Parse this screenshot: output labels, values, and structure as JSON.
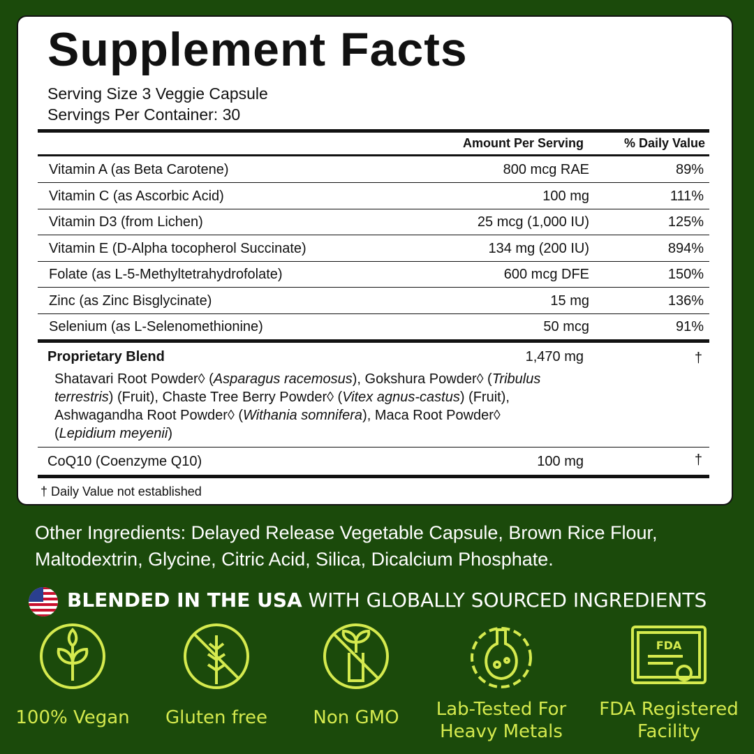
{
  "panel": {
    "title": "Supplement Facts",
    "serving_size": "Serving Size 3 Veggie Capsule",
    "servings_per_container": "Servings Per Container: 30",
    "columns": [
      "Amount Per Serving",
      "% Daily Value"
    ],
    "rows": [
      [
        "Vitamin A (as Beta Carotene)",
        "800 mcg RAE",
        "89%"
      ],
      [
        "Vitamin C (as Ascorbic Acid)",
        "100 mg",
        "111%"
      ],
      [
        "Vitamin D3 (from Lichen)",
        "25 mcg (1,000 IU)",
        "125%"
      ],
      [
        "Vitamin E (D-Alpha tocopherol Succinate)",
        "134 mg (200 IU)",
        "894%"
      ],
      [
        "Folate (as L-5-Methyltetrahydrofolate)",
        "600 mcg DFE",
        "150%"
      ],
      [
        "Zinc (as Zinc Bisglycinate)",
        "15 mg",
        "136%"
      ],
      [
        "Selenium (as L-Selenomethionine)",
        "50 mcg",
        "91%"
      ]
    ],
    "blend": {
      "name": "Proprietary Blend",
      "amount": "1,470 mg",
      "daily_value": "†",
      "description": [
        {
          "text": "Shatavari Root Powder◊ (",
          "italic": false
        },
        {
          "text": "Asparagus racemosus",
          "italic": true
        },
        {
          "text": "), Gokshura Powder◊ (",
          "italic": false
        },
        {
          "text": "Tribulus terrestris",
          "italic": true
        },
        {
          "text": ") (Fruit), Chaste Tree Berry Powder◊ (",
          "italic": false
        },
        {
          "text": "Vitex agnus-castus",
          "italic": true
        },
        {
          "text": ") (Fruit), Ashwagandha Root Powder◊ (",
          "italic": false
        },
        {
          "text": "Withania somnifera",
          "italic": true
        },
        {
          "text": "), Maca Root Powder◊ (",
          "italic": false
        },
        {
          "text": "Lepidium meyenii",
          "italic": true
        },
        {
          "text": ")",
          "italic": false
        }
      ]
    },
    "extra_row": [
      "CoQ10 (Coenzyme Q10)",
      "100 mg",
      "†"
    ],
    "footnote": "† Daily Value not established"
  },
  "other_ingredients": "Other Ingredients: Delayed Release Vegetable Capsule, Brown Rice Flour, Maltodextrin, Glycine, Citric Acid, Silica, Dicalcium Phosphate.",
  "origin": {
    "emphasis": "BLENDED IN THE USA",
    "rest": "WITH GLOBALLY SOURCED INGREDIENTS"
  },
  "badges": [
    {
      "label": "100% Vegan"
    },
    {
      "label": "Gluten free"
    },
    {
      "label": "Non GMO"
    },
    {
      "label": "Lab-Tested For Heavy Metals"
    },
    {
      "label": "FDA Registered Facility",
      "icon_text": "FDA"
    }
  ]
}
